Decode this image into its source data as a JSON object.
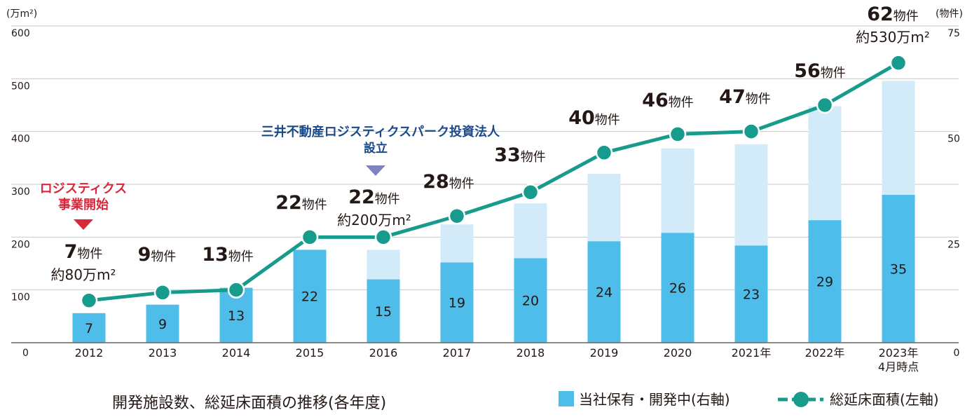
{
  "chart_data": {
    "type": "bar+line",
    "title": "開発施設数、総延床面積の推移(各年度)",
    "y_left_unit": "(万m²)",
    "y_right_unit": "(物件)",
    "y_left_range": [
      0,
      600
    ],
    "y_right_range": [
      0,
      75
    ],
    "y_left_ticks": [
      "0",
      "100",
      "200",
      "300",
      "400",
      "500",
      "600"
    ],
    "y_right_ticks": [
      "0",
      "25",
      "50",
      "75"
    ],
    "categories": [
      "2012",
      "2013",
      "2014",
      "2015",
      "2016",
      "2017",
      "2018",
      "2019",
      "2020",
      "2021年",
      "2022年",
      "2023年"
    ],
    "category_note_last": "4月時点",
    "series": [
      {
        "name": "当社保有・開発中(右軸)",
        "axis": "right",
        "type": "bar-owned",
        "color": "#4ebde9",
        "values": [
          7,
          9,
          13,
          22,
          15,
          19,
          20,
          24,
          26,
          23,
          29,
          35
        ]
      },
      {
        "name": "total_properties",
        "axis": "right",
        "type": "bar-total",
        "color": "#d3ebf8",
        "values": [
          7,
          9,
          13,
          22,
          22,
          28,
          33,
          40,
          46,
          47,
          56,
          62
        ]
      },
      {
        "name": "総延床面積(左軸)",
        "axis": "left",
        "type": "line",
        "color": "#179b8c",
        "values": [
          80,
          95,
          100,
          200,
          200,
          240,
          285,
          360,
          395,
          400,
          450,
          530
        ]
      }
    ],
    "count_labels": [
      {
        "num": "7",
        "unit": "物件",
        "area": "約80万m²"
      },
      {
        "num": "9",
        "unit": "物件"
      },
      {
        "num": "13",
        "unit": "物件"
      },
      {
        "num": "22",
        "unit": "物件"
      },
      {
        "num": "22",
        "unit": "物件",
        "area": "約200万m²"
      },
      {
        "num": "28",
        "unit": "物件"
      },
      {
        "num": "33",
        "unit": "物件"
      },
      {
        "num": "40",
        "unit": "物件"
      },
      {
        "num": "46",
        "unit": "物件"
      },
      {
        "num": "47",
        "unit": "物件"
      },
      {
        "num": "56",
        "unit": "物件"
      },
      {
        "num": "62",
        "unit": "物件",
        "area": "約530万m²"
      }
    ],
    "annotations": [
      {
        "text_lines": [
          "ロジスティクス",
          "事業開始"
        ],
        "category": "2012",
        "color": "#d7273a"
      },
      {
        "text_lines": [
          "三井不動産ロジスティクスパーク投資法人",
          "設立"
        ],
        "category": "2016",
        "color": "#1b4a8a"
      }
    ],
    "legend": [
      {
        "label": "当社保有・開発中(右軸)",
        "marker": "square",
        "color": "#4ebde9"
      },
      {
        "label": "総延床面積(左軸)",
        "marker": "line-dot",
        "color": "#179b8c"
      }
    ]
  }
}
